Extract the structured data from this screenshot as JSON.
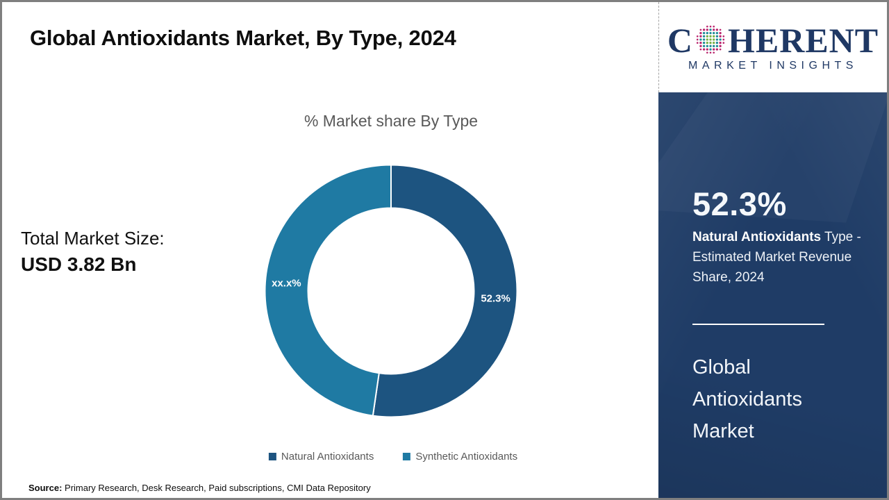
{
  "page": {
    "title": "Global Antioxidants Market, By Type, 2024",
    "source_label": "Source:",
    "source_text": " Primary Research, Desk Research, Paid subscriptions, CMI Data Repository"
  },
  "total": {
    "label": "Total Market Size:",
    "value": "USD 3.82 Bn"
  },
  "chart_data": {
    "type": "pie",
    "donut": true,
    "title": "% Market share By Type",
    "legend_position": "bottom",
    "start_angle_deg": 0,
    "series": [
      {
        "name": "Natural Antioxidants",
        "value": 52.3,
        "label": "52.3%",
        "color": "#1d5480"
      },
      {
        "name": "Synthetic Antioxidants",
        "value": 47.7,
        "label": "xx.x%",
        "color": "#1f7aa3"
      }
    ]
  },
  "logo": {
    "prefix": "C",
    "suffix": "HERENT",
    "tagline": "MARKET INSIGHTS",
    "globe_icon": "dotted-globe-icon",
    "navy": "#1f3864",
    "globe_colors": {
      "center": "#76b043",
      "middle": "#1d8a96",
      "outer": "#b9246d"
    }
  },
  "sidebar": {
    "background": "#1f3c66",
    "stat_value": "52.3%",
    "stat_desc_bold": "Natural Antioxidants",
    "stat_desc_rest": " Type - Estimated Market Revenue Share, 2024",
    "market_name": "Global Antioxidants Market"
  }
}
